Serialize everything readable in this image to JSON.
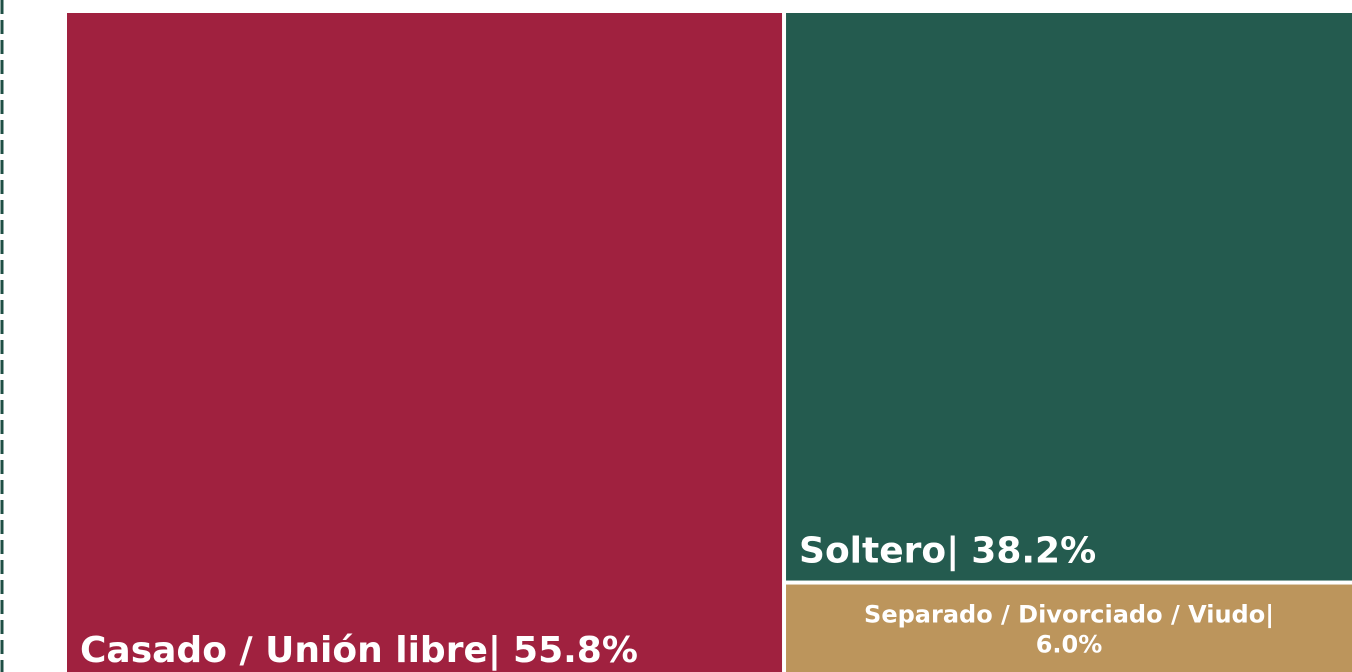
{
  "chart_data": {
    "type": "treemap",
    "categories": [
      "Casado / Unión libre|",
      "Soltero|",
      "Separado / Divorciado / Viudo|"
    ],
    "values": [
      55.8,
      38.2,
      6.0
    ],
    "value_labels": [
      "55.8%",
      "38.2%",
      "6.0%"
    ],
    "colors": [
      "#a0213f",
      "#245b4f",
      "#bc955c"
    ]
  }
}
